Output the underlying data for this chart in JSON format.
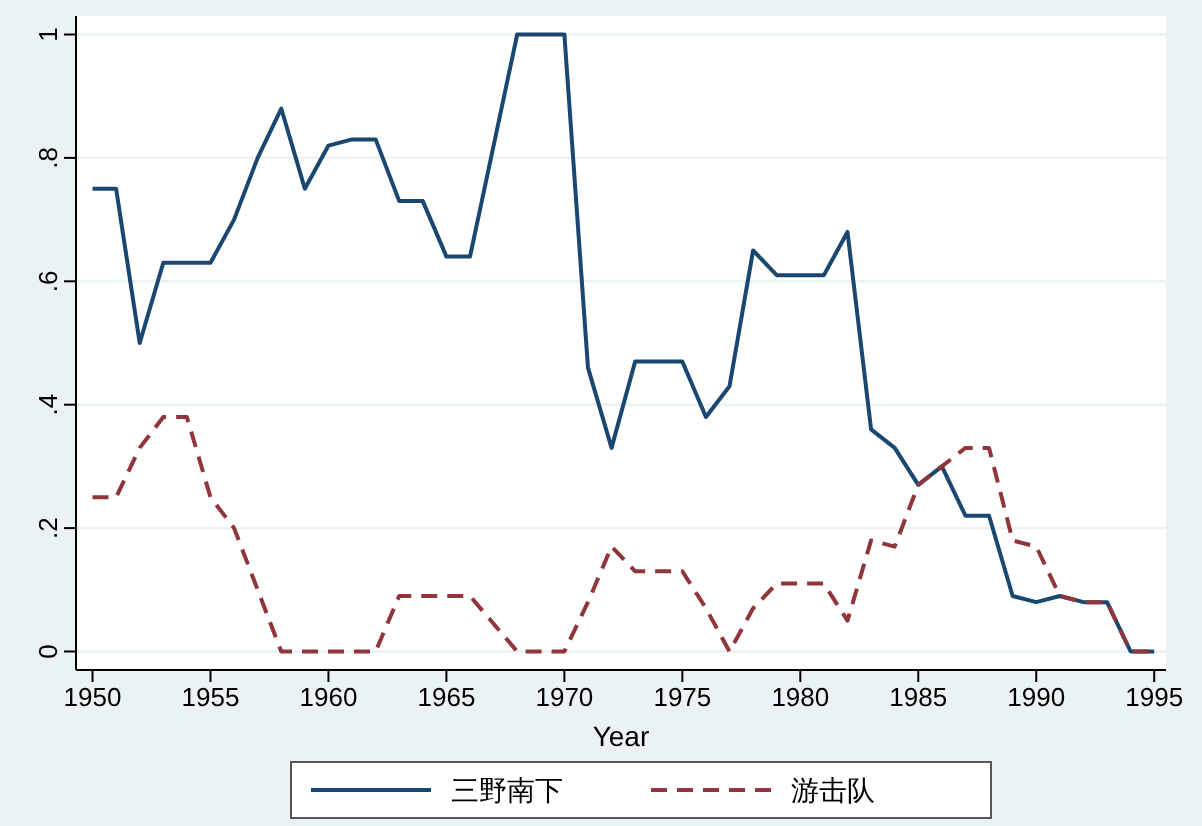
{
  "chart_data": {
    "type": "line",
    "xlabel": "Year",
    "x": [
      1950,
      1951,
      1952,
      1953,
      1954,
      1955,
      1956,
      1957,
      1958,
      1959,
      1960,
      1961,
      1962,
      1963,
      1964,
      1965,
      1966,
      1967,
      1968,
      1969,
      1970,
      1971,
      1972,
      1973,
      1974,
      1975,
      1976,
      1977,
      1978,
      1979,
      1980,
      1981,
      1982,
      1983,
      1984,
      1985,
      1986,
      1987,
      1988,
      1989,
      1990,
      1991,
      1992,
      1993,
      1994,
      1995
    ],
    "xlim": [
      1949.3,
      1995.5
    ],
    "xticks": [
      1950,
      1955,
      1960,
      1965,
      1970,
      1975,
      1980,
      1985,
      1990,
      1995
    ],
    "ylim": [
      -0.03,
      1.03
    ],
    "yticks": [
      {
        "value": 0,
        "label": "0"
      },
      {
        "value": 0.2,
        "label": ".2"
      },
      {
        "value": 0.4,
        "label": ".4"
      },
      {
        "value": 0.6,
        "label": ".6"
      },
      {
        "value": 0.8,
        "label": ".8"
      },
      {
        "value": 1,
        "label": "1"
      }
    ],
    "grid": "y",
    "legend": "bottom",
    "series": [
      {
        "name": "三野南下",
        "color": "#1a476f",
        "line_style": "solid",
        "values": [
          0.75,
          0.75,
          0.5,
          0.63,
          0.63,
          0.63,
          0.7,
          0.8,
          0.88,
          0.75,
          0.82,
          0.83,
          0.83,
          0.73,
          0.73,
          0.64,
          0.64,
          0.82,
          1,
          1,
          1,
          0.46,
          0.33,
          0.47,
          0.47,
          0.47,
          0.38,
          0.43,
          0.65,
          0.61,
          0.61,
          0.61,
          0.68,
          0.36,
          0.33,
          0.27,
          0.3,
          0.22,
          0.22,
          0.09,
          0.08,
          0.09,
          0.08,
          0.08,
          0,
          0
        ]
      },
      {
        "name": "游击队",
        "color": "#90353b",
        "line_style": "dashed",
        "values": [
          0.25,
          0.25,
          0.33,
          0.38,
          0.38,
          0.25,
          0.2,
          0.1,
          0,
          0,
          0,
          0,
          0,
          0.09,
          0.09,
          0.09,
          0.09,
          0.045,
          0,
          0,
          0,
          0.08,
          0.17,
          0.13,
          0.13,
          0.13,
          0.07,
          0,
          0.07,
          0.11,
          0.11,
          0.11,
          0.05,
          0.18,
          0.17,
          0.27,
          0.3,
          0.33,
          0.33,
          0.18,
          0.17,
          0.09,
          0.08,
          0.08,
          0,
          0
        ]
      }
    ]
  }
}
